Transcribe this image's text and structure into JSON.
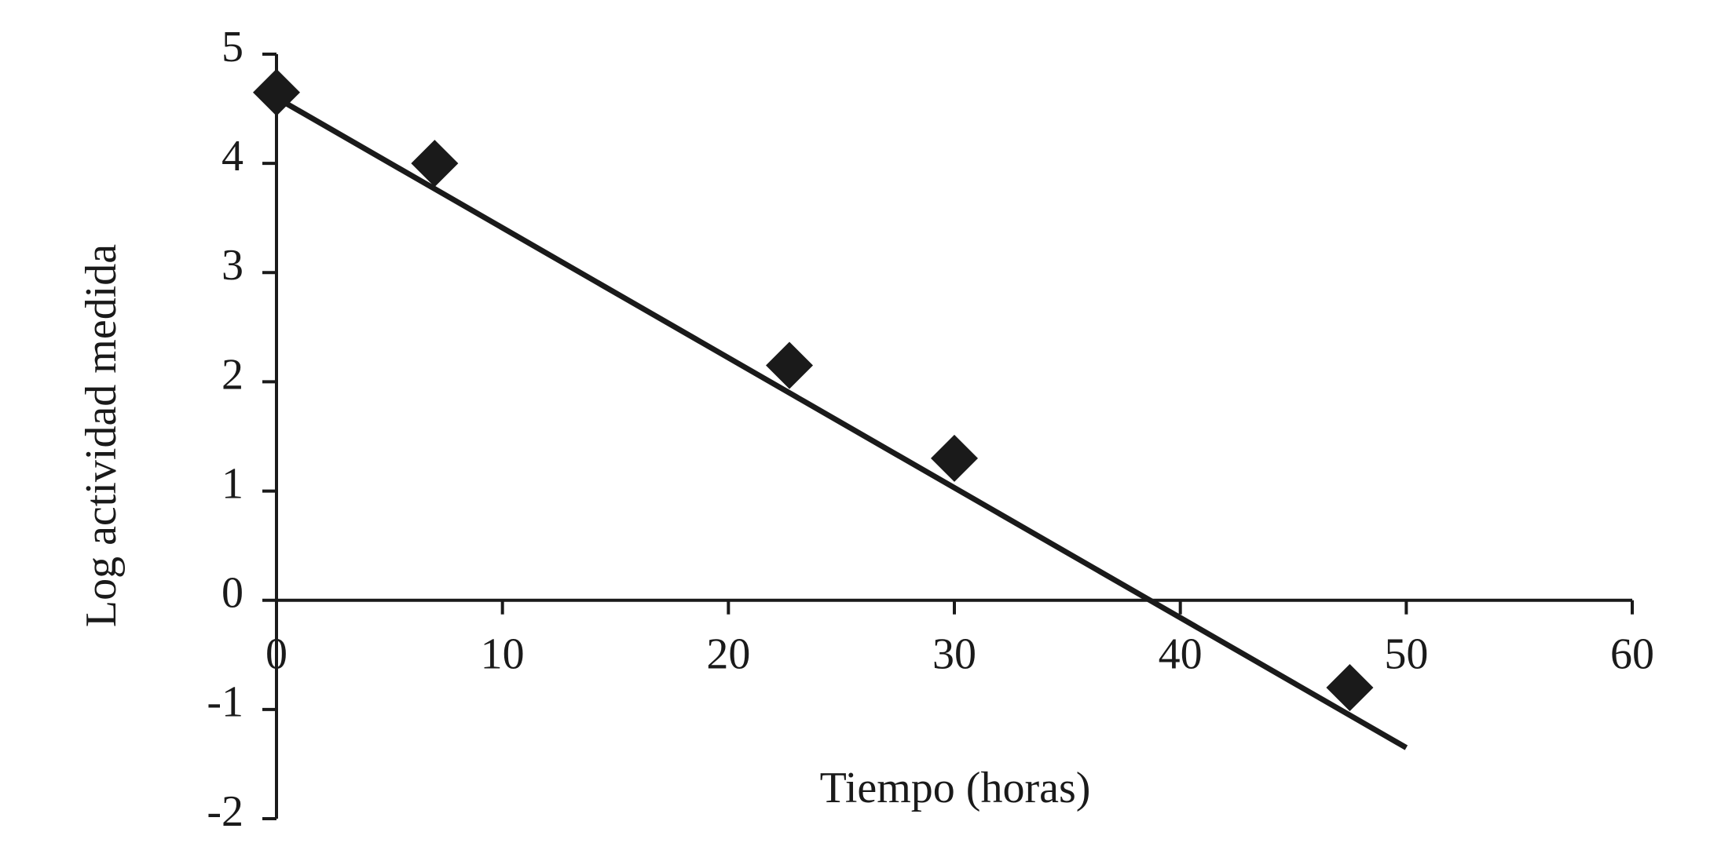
{
  "chart_data": {
    "type": "scatter",
    "x_label": "Tiempo (horas)",
    "y_label": "Log actividad medida",
    "series": [
      {
        "color": "#1a1a1a",
        "x": [
          0,
          7,
          22.7,
          30,
          47.5
        ],
        "values": [
          4.65,
          4.0,
          2.15,
          1.3,
          -0.8
        ]
      }
    ],
    "trend": {
      "color": "#1a1a1a",
      "x": [
        0,
        50
      ],
      "values": [
        4.6,
        -1.35
      ]
    },
    "xlim": [
      0,
      60
    ],
    "xticks": [
      0,
      10,
      20,
      30,
      40,
      50,
      60
    ],
    "ylim": [
      -2,
      5
    ],
    "yticks": [
      -2,
      -1,
      0,
      1,
      2,
      3,
      4,
      5
    ],
    "grid": false
  }
}
